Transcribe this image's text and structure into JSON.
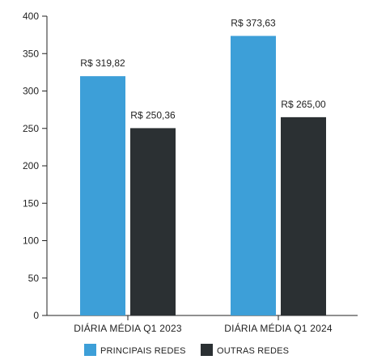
{
  "chart_data": {
    "type": "bar",
    "categories": [
      "DIÁRIA MÉDIA Q1 2023",
      "DIÁRIA MÉDIA Q1 2024"
    ],
    "series": [
      {
        "name": "PRINCIPAIS REDES",
        "values": [
          319.82,
          373.63
        ],
        "labels": [
          "R$ 319,82",
          "R$ 373,63"
        ],
        "color": "#3d9fd8"
      },
      {
        "name": "OUTRAS REDES",
        "values": [
          250.36,
          265.0
        ],
        "labels": [
          "R$ 250,36",
          "R$ 265,00"
        ],
        "color": "#2b3033"
      }
    ],
    "ylim": [
      0,
      400
    ],
    "yticks": [
      "0",
      "50",
      "100",
      "150",
      "200",
      "250",
      "300",
      "350",
      "400"
    ],
    "grid": false,
    "legend_position": "bottom"
  }
}
